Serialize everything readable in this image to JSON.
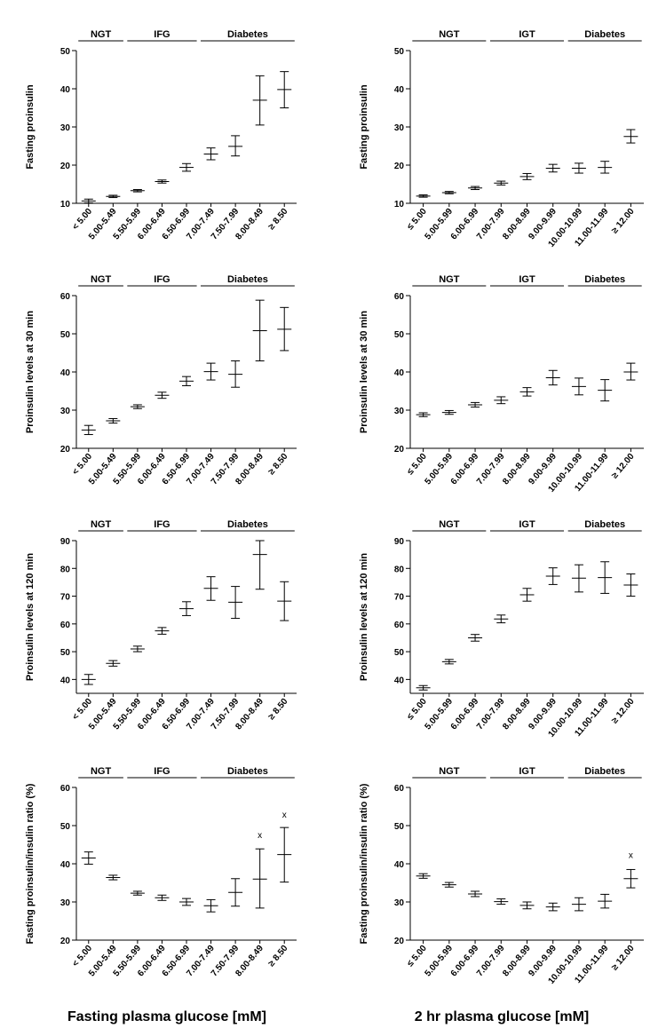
{
  "figure": {
    "xtitle_left": "Fasting plasma glucose [mM]",
    "xtitle_right": "2 hr plasma glucose [mM]"
  },
  "chart_data": [
    {
      "type": "errorbar",
      "ylabel": "Fasting proinsulin",
      "ylim": [
        10,
        50
      ],
      "yticks": [
        10,
        20,
        30,
        40,
        50
      ],
      "categories": [
        "< 5.00",
        "5.00-5.49",
        "5.50-5.99",
        "6.00-6.49",
        "6.50-6.99",
        "7.00-7.49",
        "7.50-7.99",
        "8.00-8.49",
        "≥ 8.50"
      ],
      "groups": [
        {
          "label": "NGT",
          "from": 0,
          "to": 1
        },
        {
          "label": "IFG",
          "from": 2,
          "to": 4
        },
        {
          "label": "Diabetes",
          "from": 5,
          "to": 8
        }
      ],
      "mean": [
        10.6,
        11.8,
        13.3,
        15.7,
        19.4,
        22.9,
        24.9,
        37.0,
        39.8
      ],
      "lower": [
        10.1,
        11.5,
        13.0,
        15.3,
        18.4,
        21.4,
        22.4,
        30.5,
        35.0
      ],
      "upper": [
        11.1,
        12.1,
        13.6,
        16.1,
        20.4,
        24.5,
        27.7,
        43.4,
        44.5
      ],
      "markers": []
    },
    {
      "type": "errorbar",
      "ylabel": "Fasting proinsulin",
      "ylim": [
        10,
        50
      ],
      "yticks": [
        10,
        20,
        30,
        40,
        50
      ],
      "categories": [
        "≤ 5.00",
        "5.00-5.99",
        "6.00-6.99",
        "7.00-7.99",
        "8.00-8.99",
        "9.00-9.99",
        "10.00-10.99",
        "11.00-11.99",
        "≥ 12.00"
      ],
      "groups": [
        {
          "label": "NGT",
          "from": 0,
          "to": 2
        },
        {
          "label": "IGT",
          "from": 3,
          "to": 5
        },
        {
          "label": "Diabetes",
          "from": 6,
          "to": 8
        }
      ],
      "mean": [
        11.9,
        12.8,
        14.0,
        15.3,
        17.0,
        19.2,
        19.2,
        19.4,
        27.5
      ],
      "lower": [
        11.6,
        12.5,
        13.6,
        14.8,
        16.2,
        18.2,
        17.9,
        17.9,
        25.8
      ],
      "upper": [
        12.2,
        13.1,
        14.4,
        15.8,
        17.8,
        20.2,
        20.5,
        21.0,
        29.3
      ],
      "markers": []
    },
    {
      "type": "errorbar",
      "ylabel": "Proinsulin levels at 30 min",
      "ylim": [
        20,
        60
      ],
      "yticks": [
        20,
        30,
        40,
        50,
        60
      ],
      "categories": [
        "< 5.00",
        "5.00-5.49",
        "5.50-5.99",
        "6.00-6.49",
        "6.50-6.99",
        "7.00-7.49",
        "7.50-7.99",
        "8.00-8.49",
        "≥ 8.50"
      ],
      "groups": [
        {
          "label": "NGT",
          "from": 0,
          "to": 1
        },
        {
          "label": "IFG",
          "from": 2,
          "to": 4
        },
        {
          "label": "Diabetes",
          "from": 5,
          "to": 8
        }
      ],
      "mean": [
        24.8,
        27.2,
        30.9,
        33.9,
        37.6,
        40.1,
        39.4,
        50.8,
        51.2
      ],
      "lower": [
        23.6,
        26.6,
        30.4,
        33.1,
        36.4,
        37.9,
        36.0,
        42.9,
        45.6
      ],
      "upper": [
        26.0,
        27.8,
        31.4,
        34.7,
        38.8,
        42.3,
        42.9,
        58.8,
        56.9
      ],
      "markers": []
    },
    {
      "type": "errorbar",
      "ylabel": "Proinsulin levels at 30 min",
      "ylim": [
        20,
        60
      ],
      "yticks": [
        20,
        30,
        40,
        50,
        60
      ],
      "categories": [
        "≤ 5.00",
        "5.00-5.99",
        "6.00-6.99",
        "7.00-7.99",
        "8.00-8.99",
        "9.00-9.99",
        "10.00-10.99",
        "11.00-11.99",
        "≥ 12.00"
      ],
      "groups": [
        {
          "label": "NGT",
          "from": 0,
          "to": 2
        },
        {
          "label": "IGT",
          "from": 3,
          "to": 5
        },
        {
          "label": "Diabetes",
          "from": 6,
          "to": 8
        }
      ],
      "mean": [
        28.8,
        29.4,
        31.4,
        32.6,
        34.8,
        38.5,
        36.2,
        35.2,
        40.0
      ],
      "lower": [
        28.3,
        28.9,
        30.8,
        31.7,
        33.7,
        36.6,
        34.0,
        32.4,
        37.9
      ],
      "upper": [
        29.3,
        29.9,
        32.0,
        33.5,
        35.9,
        40.4,
        38.4,
        38.0,
        42.3
      ],
      "markers": []
    },
    {
      "type": "errorbar",
      "ylabel": "Proinsulin levels at 120 min",
      "ylim": [
        35,
        90
      ],
      "yticks": [
        40,
        50,
        60,
        70,
        80,
        90
      ],
      "categories": [
        "< 5.00",
        "5.00-5.49",
        "5.50-5.99",
        "6.00-6.49",
        "6.50-6.99",
        "7.00-7.49",
        "7.50-7.99",
        "8.00-8.49",
        "≥ 8.50"
      ],
      "groups": [
        {
          "label": "NGT",
          "from": 0,
          "to": 1
        },
        {
          "label": "IFG",
          "from": 2,
          "to": 4
        },
        {
          "label": "Diabetes",
          "from": 5,
          "to": 8
        }
      ],
      "mean": [
        40.0,
        45.8,
        51.0,
        57.5,
        65.5,
        72.8,
        67.8,
        85.0,
        68.2
      ],
      "lower": [
        38.2,
        44.8,
        50.0,
        56.3,
        63.0,
        68.5,
        62.0,
        72.5,
        61.2
      ],
      "upper": [
        41.8,
        46.8,
        52.0,
        58.7,
        68.0,
        77.0,
        73.5,
        90.0,
        75.2
      ],
      "markers": []
    },
    {
      "type": "errorbar",
      "ylabel": "Proinsulin levels at 120 min",
      "ylim": [
        35,
        90
      ],
      "yticks": [
        40,
        50,
        60,
        70,
        80,
        90
      ],
      "categories": [
        "≤ 5.00",
        "5.00-5.99",
        "6.00-6.99",
        "7.00-7.99",
        "8.00-8.99",
        "9.00-9.99",
        "10.00-10.99",
        "11.00-11.99",
        "≥ 12.00"
      ],
      "groups": [
        {
          "label": "NGT",
          "from": 0,
          "to": 2
        },
        {
          "label": "IGT",
          "from": 3,
          "to": 5
        },
        {
          "label": "Diabetes",
          "from": 6,
          "to": 8
        }
      ],
      "mean": [
        37.0,
        46.4,
        55.0,
        61.8,
        70.5,
        77.2,
        76.5,
        76.7,
        74.0
      ],
      "lower": [
        36.2,
        45.6,
        53.8,
        60.4,
        68.2,
        74.2,
        71.5,
        71.0,
        70.0
      ],
      "upper": [
        37.8,
        47.2,
        56.2,
        63.2,
        72.8,
        80.2,
        81.3,
        82.4,
        78.0
      ],
      "markers": []
    },
    {
      "type": "errorbar",
      "ylabel": "Fasting proinsulin/insulin ratio (%)",
      "ylim": [
        20,
        60
      ],
      "yticks": [
        20,
        30,
        40,
        50,
        60
      ],
      "categories": [
        "< 5.00",
        "5.00-5.49",
        "5.50-5.99",
        "6.00-6.49",
        "6.50-6.99",
        "7.00-7.49",
        "7.50-7.99",
        "8.00-8.49",
        "≥ 8.50"
      ],
      "groups": [
        {
          "label": "NGT",
          "from": 0,
          "to": 1
        },
        {
          "label": "IFG",
          "from": 2,
          "to": 4
        },
        {
          "label": "Diabetes",
          "from": 5,
          "to": 8
        }
      ],
      "mean": [
        41.5,
        36.4,
        32.3,
        31.1,
        30.0,
        29.0,
        32.5,
        36.0,
        42.4
      ],
      "lower": [
        39.9,
        35.8,
        31.8,
        30.4,
        29.1,
        27.4,
        28.9,
        28.4,
        35.2
      ],
      "upper": [
        43.1,
        37.0,
        32.8,
        31.8,
        30.9,
        30.6,
        36.1,
        43.9,
        49.5
      ],
      "markers": [
        {
          "index": 7,
          "y": 47.5,
          "text": "x"
        },
        {
          "index": 8,
          "y": 52.8,
          "text": "x"
        }
      ]
    },
    {
      "type": "errorbar",
      "ylabel": "Fasting proinsulin/insulin ratio (%)",
      "ylim": [
        20,
        60
      ],
      "yticks": [
        20,
        30,
        40,
        50,
        60
      ],
      "categories": [
        "≤ 5.00",
        "5.00-5.99",
        "6.00-6.99",
        "7.00-7.99",
        "8.00-8.99",
        "9.00-9.99",
        "10.00-10.99",
        "11.00-11.99",
        "≥ 12.00"
      ],
      "groups": [
        {
          "label": "NGT",
          "from": 0,
          "to": 2
        },
        {
          "label": "IGT",
          "from": 3,
          "to": 5
        },
        {
          "label": "Diabetes",
          "from": 6,
          "to": 8
        }
      ],
      "mean": [
        36.8,
        34.5,
        32.1,
        30.1,
        29.1,
        28.7,
        29.4,
        30.2,
        36.1
      ],
      "lower": [
        36.2,
        33.9,
        31.4,
        29.4,
        28.2,
        27.7,
        27.7,
        28.4,
        33.7
      ],
      "upper": [
        37.4,
        35.1,
        32.8,
        30.8,
        30.0,
        29.7,
        31.1,
        32.0,
        38.5
      ],
      "markers": [
        {
          "index": 8,
          "y": 42.2,
          "text": "x"
        }
      ]
    }
  ]
}
